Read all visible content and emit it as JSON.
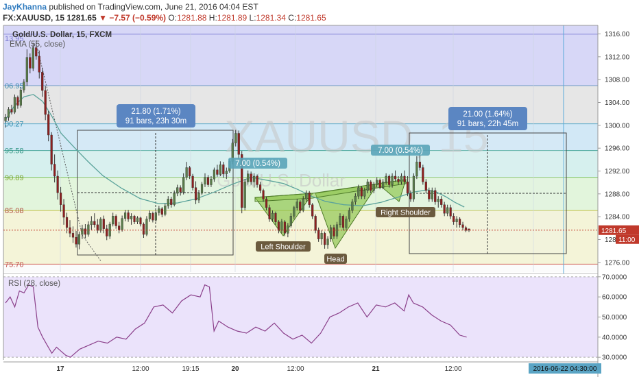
{
  "header": {
    "author": "JayKhanna",
    "published": " published on TradingView.com, June 21, 2016 04:04 EST",
    "symbol": "FX:XAUUSD, 15",
    "price": "1281.65",
    "change": "▼ −7.57 (−0.59%)",
    "o_label": "O:",
    "o_value": "1281.88",
    "h_label": "H:",
    "h_value": "1281.89",
    "l_label": "L:",
    "l_value": "1281.34",
    "c_label": "C:",
    "c_value": "1281.65"
  },
  "legend": {
    "title": "Gold/U.S. Dollar, 15, FXCM",
    "ema": "EMA (55, close)",
    "rsi": "RSI (28, close)"
  },
  "watermark": {
    "symbol": "XAUUSD, 15",
    "name": "Gold/U.S. Dollar"
  },
  "fib_labels": [
    "13.95",
    "06.95",
    "00.27",
    "95.58",
    "90.89",
    "85.08",
    "75.70"
  ],
  "measure_boxes": [
    {
      "line1": "21.80 (1.71%)",
      "line2": "91 bars, 23h 30m"
    },
    {
      "line1": "21.00 (1.64%)",
      "line2": "91 bars, 22h 45m"
    }
  ],
  "swing_labels": [
    "7.00 (0.54%)",
    "7.00 (0.54%)"
  ],
  "pattern_labels": {
    "left": "Left Shoulder",
    "head": "Head",
    "right": "Right Shoulder"
  },
  "price_tags": {
    "last": "1281.65",
    "countdown": "11:00"
  },
  "time_tag": "2016-06-22 04:30:00",
  "chart_data": {
    "type": "line",
    "title": "Gold/U.S. Dollar, 15, FXCM",
    "price_axis": {
      "ticks": [
        1276.0,
        1280.0,
        1284.0,
        1288.0,
        1292.0,
        1296.0,
        1300.0,
        1304.0,
        1308.0,
        1312.0,
        1316.0
      ],
      "range": [
        1274.3,
        1317.5
      ]
    },
    "rsi_axis": {
      "ticks": [
        30.0,
        40.0,
        50.0,
        60.0,
        70.0
      ],
      "range": [
        28.7,
        71.3
      ]
    },
    "time_ticks": [
      "17",
      "12:00",
      "19:15",
      "20",
      "12:00",
      "21",
      "12:00"
    ],
    "fib_levels": [
      1315.95,
      1306.95,
      1300.27,
      1295.58,
      1290.89,
      1285.08,
      1275.7
    ],
    "series": [
      {
        "name": "EMA (55, close)",
        "x": [
          0,
          4,
          8,
          12,
          16,
          20,
          24,
          30,
          36,
          42,
          50,
          58,
          66,
          74,
          82,
          90,
          98,
          106,
          114,
          120,
          126,
          132,
          138,
          146,
          154,
          162,
          170,
          176,
          182,
          186,
          190,
          194,
          198
        ],
        "values": [
          1301,
          1303.5,
          1305,
          1305.4,
          1304.2,
          1301.6,
          1298.6,
          1296,
          1293.5,
          1291.2,
          1289,
          1287.2,
          1286.3,
          1286.4,
          1287.1,
          1288.3,
          1289.7,
          1290.9,
          1290.3,
          1289.8,
          1288.8,
          1287.6,
          1286.7,
          1286.1,
          1285.9,
          1286.5,
          1287.5,
          1288.3,
          1288.7,
          1288.3,
          1287.5,
          1286.5,
          1285.7
        ]
      },
      {
        "name": "RSI (28, close)",
        "x": [
          0,
          2,
          4,
          6,
          8,
          10,
          12,
          14,
          16,
          18,
          20,
          22,
          24,
          26,
          28,
          32,
          36,
          40,
          44,
          48,
          52,
          56,
          60,
          64,
          68,
          72,
          76,
          80,
          84,
          86,
          88,
          90,
          92,
          96,
          100,
          104,
          108,
          112,
          116,
          120,
          124,
          128,
          132,
          136,
          140,
          144,
          148,
          152,
          156,
          160,
          164,
          168,
          172,
          174,
          176,
          180,
          184,
          188,
          192,
          196,
          199
        ],
        "values": [
          57,
          60,
          55,
          63,
          62,
          66,
          65,
          45,
          40,
          36,
          32,
          35,
          33,
          31,
          30,
          34,
          36,
          38,
          37,
          40,
          39,
          44,
          47,
          55,
          56,
          52,
          58,
          61,
          60,
          66,
          65,
          43,
          48,
          45,
          43,
          42,
          45,
          43,
          47,
          42,
          39,
          41,
          37,
          42,
          50,
          52,
          55,
          57,
          50,
          56,
          55,
          57,
          53,
          61,
          57,
          55,
          51,
          48,
          46,
          41,
          40
        ]
      }
    ],
    "candles": [
      [
        1300.8,
        1302.0,
        1299.6,
        1301.4
      ],
      [
        1301.4,
        1303.2,
        1300.8,
        1302.8
      ],
      [
        1302.8,
        1303.6,
        1301.9,
        1302.3
      ],
      [
        1302.3,
        1305.4,
        1302.0,
        1304.9
      ],
      [
        1304.9,
        1305.2,
        1302.9,
        1303.5
      ],
      [
        1303.5,
        1306.7,
        1303.1,
        1306.2
      ],
      [
        1306.2,
        1308.1,
        1305.7,
        1307.6
      ],
      [
        1307.6,
        1313.3,
        1306.9,
        1311.9
      ],
      [
        1311.9,
        1312.6,
        1309.1,
        1310.0
      ],
      [
        1310.0,
        1314.3,
        1309.5,
        1313.6
      ],
      [
        1313.6,
        1314.9,
        1311.5,
        1312.1
      ],
      [
        1312.1,
        1313.1,
        1308.2,
        1309.3
      ],
      [
        1309.3,
        1310.1,
        1305.0,
        1306.1
      ],
      [
        1306.1,
        1306.9,
        1300.9,
        1301.9
      ],
      [
        1301.9,
        1302.5,
        1297.2,
        1298.3
      ],
      [
        1298.3,
        1298.8,
        1292.1,
        1293.2
      ],
      [
        1293.2,
        1294.9,
        1290.0,
        1291.1
      ],
      [
        1291.1,
        1292.1,
        1287.0,
        1288.2
      ],
      [
        1288.2,
        1289.2,
        1284.9,
        1286.1
      ],
      [
        1286.1,
        1287.1,
        1282.6,
        1283.9
      ],
      [
        1283.9,
        1284.7,
        1281.1,
        1282.1
      ],
      [
        1282.1,
        1283.4,
        1280.4,
        1281.1
      ],
      [
        1281.1,
        1282.3,
        1279.4,
        1280.4
      ],
      [
        1280.4,
        1281.5,
        1278.6,
        1279.2
      ],
      [
        1279.2,
        1281.4,
        1278.3,
        1280.9
      ],
      [
        1280.9,
        1282.6,
        1280.1,
        1281.9
      ],
      [
        1281.9,
        1282.7,
        1280.2,
        1280.9
      ],
      [
        1280.9,
        1283.2,
        1280.5,
        1282.6
      ],
      [
        1282.6,
        1284.1,
        1281.7,
        1283.2
      ],
      [
        1283.2,
        1284.6,
        1282.1,
        1282.6
      ],
      [
        1282.6,
        1283.6,
        1281.1,
        1281.6
      ],
      [
        1281.6,
        1283.9,
        1281.2,
        1283.6
      ],
      [
        1283.6,
        1284.2,
        1281.1,
        1281.9
      ],
      [
        1281.9,
        1282.6,
        1279.9,
        1280.6
      ],
      [
        1280.6,
        1283.1,
        1280.1,
        1282.7
      ],
      [
        1282.7,
        1284.7,
        1282.3,
        1284.1
      ],
      [
        1284.1,
        1284.4,
        1281.9,
        1282.4
      ],
      [
        1282.4,
        1283.1,
        1281.1,
        1281.7
      ],
      [
        1281.7,
        1284.2,
        1281.4,
        1283.7
      ],
      [
        1283.7,
        1285.2,
        1283.2,
        1284.7
      ],
      [
        1284.7,
        1285.2,
        1283.1,
        1283.6
      ],
      [
        1283.6,
        1284.6,
        1282.6,
        1284.1
      ],
      [
        1284.1,
        1284.3,
        1282.7,
        1283.1
      ],
      [
        1283.1,
        1284.1,
        1282.7,
        1283.8
      ],
      [
        1283.8,
        1284.0,
        1282.3,
        1282.7
      ],
      [
        1282.7,
        1283.0,
        1280.3,
        1280.9
      ],
      [
        1280.9,
        1284.1,
        1280.6,
        1283.6
      ],
      [
        1283.6,
        1285.1,
        1283.1,
        1284.6
      ],
      [
        1284.6,
        1284.9,
        1283.0,
        1283.4
      ],
      [
        1283.4,
        1285.1,
        1283.1,
        1284.7
      ],
      [
        1284.7,
        1285.9,
        1284.2,
        1285.4
      ],
      [
        1285.4,
        1285.7,
        1283.9,
        1284.4
      ],
      [
        1284.4,
        1286.3,
        1284.1,
        1285.9
      ],
      [
        1285.9,
        1287.6,
        1285.4,
        1287.1
      ],
      [
        1287.1,
        1287.5,
        1285.6,
        1286.1
      ],
      [
        1286.1,
        1288.6,
        1285.8,
        1288.1
      ],
      [
        1288.1,
        1289.6,
        1287.6,
        1289.1
      ],
      [
        1289.1,
        1289.5,
        1287.7,
        1288.3
      ],
      [
        1288.3,
        1291.6,
        1287.9,
        1290.9
      ],
      [
        1290.9,
        1293.6,
        1290.4,
        1292.6
      ],
      [
        1292.6,
        1292.9,
        1290.6,
        1291.1
      ],
      [
        1291.1,
        1291.5,
        1288.6,
        1289.1
      ],
      [
        1289.1,
        1290.2,
        1286.2,
        1286.9
      ],
      [
        1286.9,
        1288.7,
        1286.4,
        1288.1
      ],
      [
        1288.1,
        1290.1,
        1287.8,
        1289.7
      ],
      [
        1289.7,
        1291.6,
        1289.2,
        1290.9
      ],
      [
        1290.9,
        1291.3,
        1289.2,
        1289.6
      ],
      [
        1289.6,
        1291.1,
        1289.2,
        1290.6
      ],
      [
        1290.6,
        1292.6,
        1290.1,
        1292.2
      ],
      [
        1292.2,
        1293.1,
        1291.0,
        1291.4
      ],
      [
        1291.4,
        1293.7,
        1291.1,
        1293.1
      ],
      [
        1293.1,
        1293.6,
        1290.8,
        1291.5
      ],
      [
        1291.5,
        1292.6,
        1290.6,
        1292.0
      ],
      [
        1292.0,
        1294.1,
        1291.7,
        1293.7
      ],
      [
        1293.7,
        1297.6,
        1293.2,
        1296.9
      ],
      [
        1296.9,
        1299.2,
        1296.3,
        1298.6
      ],
      [
        1298.6,
        1299.1,
        1294.1,
        1294.9
      ],
      [
        1294.9,
        1295.5,
        1284.6,
        1285.6
      ],
      [
        1285.6,
        1290.6,
        1285.1,
        1290.1
      ],
      [
        1290.1,
        1292.1,
        1289.6,
        1291.5
      ],
      [
        1291.5,
        1291.9,
        1289.6,
        1290.1
      ],
      [
        1290.1,
        1291.6,
        1289.1,
        1291.1
      ],
      [
        1291.1,
        1291.4,
        1289.1,
        1289.6
      ],
      [
        1289.6,
        1290.1,
        1288.1,
        1288.6
      ],
      [
        1288.6,
        1288.9,
        1286.6,
        1287.1
      ],
      [
        1287.1,
        1287.5,
        1285.1,
        1285.6
      ],
      [
        1285.6,
        1286.1,
        1283.1,
        1283.6
      ],
      [
        1283.6,
        1285.1,
        1283.1,
        1284.6
      ],
      [
        1284.6,
        1284.9,
        1282.6,
        1283.1
      ],
      [
        1283.1,
        1283.4,
        1281.1,
        1281.6
      ],
      [
        1281.6,
        1283.6,
        1281.1,
        1283.1
      ],
      [
        1283.1,
        1283.4,
        1280.6,
        1281.1
      ],
      [
        1281.1,
        1282.9,
        1280.4,
        1282.4
      ],
      [
        1282.4,
        1284.6,
        1282.1,
        1284.1
      ],
      [
        1284.1,
        1285.9,
        1283.6,
        1285.6
      ],
      [
        1285.6,
        1287.1,
        1285.1,
        1286.6
      ],
      [
        1286.6,
        1286.9,
        1284.6,
        1285.1
      ],
      [
        1285.1,
        1287.6,
        1284.8,
        1287.1
      ],
      [
        1287.1,
        1288.6,
        1286.6,
        1288.2
      ],
      [
        1288.2,
        1288.5,
        1285.6,
        1286.1
      ],
      [
        1286.1,
        1286.4,
        1283.6,
        1284.1
      ],
      [
        1284.1,
        1284.4,
        1281.1,
        1281.6
      ],
      [
        1281.6,
        1282.1,
        1279.6,
        1280.1
      ],
      [
        1280.1,
        1281.6,
        1279.1,
        1281.1
      ],
      [
        1281.1,
        1281.4,
        1278.4,
        1279.1
      ],
      [
        1279.1,
        1280.6,
        1278.4,
        1280.1
      ],
      [
        1280.1,
        1282.6,
        1279.6,
        1282.1
      ],
      [
        1282.1,
        1282.6,
        1280.1,
        1280.6
      ],
      [
        1280.6,
        1283.1,
        1280.1,
        1282.6
      ],
      [
        1282.6,
        1284.6,
        1282.1,
        1284.1
      ],
      [
        1284.1,
        1284.4,
        1281.6,
        1282.1
      ],
      [
        1282.1,
        1284.1,
        1281.6,
        1283.6
      ],
      [
        1283.6,
        1285.6,
        1283.1,
        1285.1
      ],
      [
        1285.1,
        1287.1,
        1284.6,
        1286.6
      ],
      [
        1286.6,
        1288.1,
        1286.1,
        1287.6
      ],
      [
        1287.6,
        1289.6,
        1287.1,
        1289.1
      ],
      [
        1289.1,
        1289.4,
        1287.1,
        1287.6
      ],
      [
        1287.6,
        1289.1,
        1287.1,
        1288.6
      ],
      [
        1288.6,
        1290.6,
        1288.1,
        1290.1
      ],
      [
        1290.1,
        1290.4,
        1288.1,
        1288.6
      ],
      [
        1288.6,
        1290.1,
        1288.1,
        1289.6
      ],
      [
        1289.6,
        1290.9,
        1289.1,
        1290.4
      ],
      [
        1290.4,
        1290.7,
        1288.8,
        1289.1
      ],
      [
        1289.1,
        1290.6,
        1288.8,
        1290.1
      ],
      [
        1290.1,
        1291.6,
        1289.6,
        1291.1
      ],
      [
        1291.1,
        1291.4,
        1289.1,
        1289.6
      ],
      [
        1289.6,
        1291.6,
        1289.1,
        1291.1
      ],
      [
        1291.1,
        1292.1,
        1290.1,
        1290.6
      ],
      [
        1290.6,
        1291.1,
        1289.6,
        1290.1
      ],
      [
        1290.1,
        1291.6,
        1289.6,
        1291.1
      ],
      [
        1291.1,
        1292.1,
        1289.6,
        1290.1
      ],
      [
        1290.1,
        1291.1,
        1287.6,
        1288.1
      ],
      [
        1288.1,
        1288.6,
        1286.6,
        1287.1
      ],
      [
        1287.1,
        1291.6,
        1286.6,
        1291.1
      ],
      [
        1291.1,
        1294.6,
        1290.6,
        1293.6
      ],
      [
        1293.6,
        1295.1,
        1292.1,
        1292.6
      ],
      [
        1292.6,
        1293.1,
        1289.6,
        1290.1
      ],
      [
        1290.1,
        1290.6,
        1288.1,
        1288.6
      ],
      [
        1288.6,
        1289.1,
        1286.6,
        1287.1
      ],
      [
        1287.1,
        1289.1,
        1286.6,
        1288.6
      ],
      [
        1288.6,
        1289.1,
        1286.1,
        1286.6
      ],
      [
        1286.6,
        1287.6,
        1285.6,
        1287.1
      ],
      [
        1287.1,
        1287.6,
        1285.6,
        1286.1
      ],
      [
        1286.1,
        1286.6,
        1284.1,
        1284.6
      ],
      [
        1284.6,
        1286.1,
        1284.1,
        1285.6
      ],
      [
        1285.6,
        1286.1,
        1283.6,
        1284.1
      ],
      [
        1284.1,
        1284.6,
        1282.6,
        1283.1
      ],
      [
        1283.1,
        1284.1,
        1282.1,
        1283.6
      ],
      [
        1283.6,
        1283.9,
        1282.1,
        1282.6
      ],
      [
        1282.6,
        1283.1,
        1281.6,
        1282.1
      ],
      [
        1282.1,
        1282.4,
        1281.3,
        1281.6
      ],
      [
        1281.88,
        1281.89,
        1281.34,
        1281.65
      ]
    ]
  }
}
